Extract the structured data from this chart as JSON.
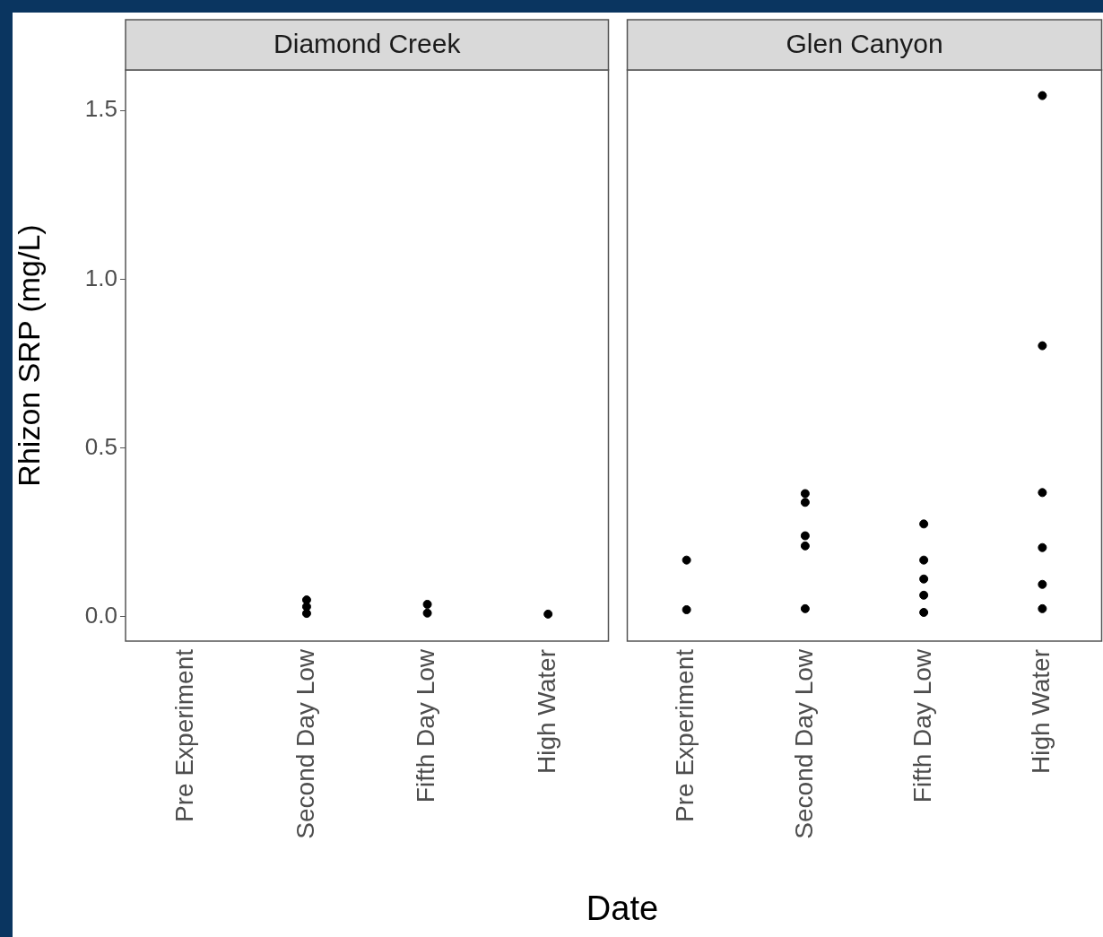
{
  "chart_data": [
    {
      "type": "scatter",
      "title": "Diamond Creek",
      "xlabel": "Date",
      "ylabel": "Rhizon SRP (mg/L)",
      "categories": [
        "Pre Experiment",
        "Second Day Low",
        "Fifth Day Low",
        "High Water"
      ],
      "series": [
        {
          "color": "#000000",
          "x": [
            "Second Day Low",
            "Second Day Low",
            "Second Day Low",
            "Fifth Day Low",
            "Fifth Day Low",
            "High Water"
          ],
          "values": [
            0.05,
            0.03,
            0.01,
            0.037,
            0.011,
            0.008
          ]
        }
      ],
      "ylim": [
        -0.072,
        1.62
      ],
      "yticks": [
        {
          "value": 0,
          "label": "0.0"
        },
        {
          "value": 0.5,
          "label": "0.5"
        },
        {
          "value": 1,
          "label": "1.0"
        },
        {
          "value": 1.5,
          "label": "1.5"
        }
      ],
      "grid": false,
      "legend": false,
      "marker": "circle"
    },
    {
      "type": "scatter",
      "title": "Glen Canyon",
      "categories": [
        "Pre Experiment",
        "Second Day Low",
        "Fifth Day Low",
        "High Water"
      ],
      "series": [
        {
          "color": "#000000",
          "x": [
            "Pre Experiment",
            "Pre Experiment",
            "Second Day Low",
            "Second Day Low",
            "Second Day Low",
            "Second Day Low",
            "Second Day Low",
            "Fifth Day Low",
            "Fifth Day Low",
            "Fifth Day Low",
            "Fifth Day Low",
            "Fifth Day Low",
            "High Water",
            "High Water",
            "High Water",
            "High Water",
            "High Water",
            "High Water"
          ],
          "values": [
            0.168,
            0.021,
            0.365,
            0.339,
            0.24,
            0.21,
            0.024,
            0.275,
            0.168,
            0.112,
            0.064,
            0.013,
            1.544,
            0.803,
            0.368,
            0.205,
            0.096,
            0.024
          ]
        }
      ],
      "ylim": [
        -0.072,
        1.62
      ],
      "tick_labels": "x",
      "grid": false,
      "legend": false,
      "marker": "circle"
    }
  ]
}
